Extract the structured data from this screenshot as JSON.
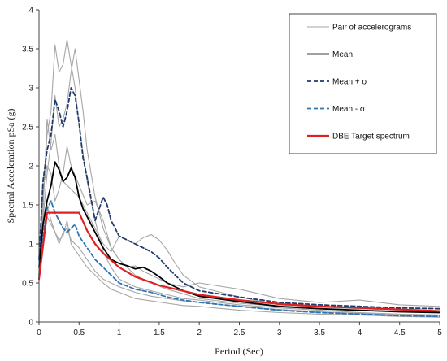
{
  "chart_data": {
    "type": "line",
    "title": "",
    "xlabel": "Period (Sec)",
    "ylabel": "Spectral Acceleration pSa (g)",
    "xlim": [
      0,
      5
    ],
    "ylim": [
      0,
      4
    ],
    "xticks": [
      "0",
      "0.5",
      "1",
      "1.5",
      "2",
      "2.5",
      "3",
      "3.5",
      "4",
      "4.5",
      "5"
    ],
    "yticks": [
      "0",
      "0.5",
      "1",
      "1.5",
      "2",
      "2.5",
      "3",
      "3.5",
      "4"
    ],
    "grid": false,
    "legend_position": "top-right",
    "legend": [
      {
        "label": "Pair of accelerograms",
        "color": "#a6a6a6",
        "style": "solid"
      },
      {
        "label": "Mean",
        "color": "#000000",
        "style": "solid"
      },
      {
        "label": "Mean + σ",
        "color": "#1f3a6b",
        "style": "dashed"
      },
      {
        "label": "Mean - σ",
        "color": "#2e75b6",
        "style": "dashed"
      },
      {
        "label": "DBE Target spectrum",
        "color": "#e02020",
        "style": "solid"
      }
    ],
    "series": [
      {
        "name": "DBE Target spectrum",
        "color": "#e02020",
        "width": 2.2,
        "dash": "",
        "x": [
          0,
          0.1,
          0.5,
          0.6,
          0.7,
          0.8,
          1.0,
          1.2,
          1.5,
          2.0,
          2.5,
          3.0,
          3.5,
          4.0,
          4.5,
          5.0
        ],
        "y": [
          0.55,
          1.4,
          1.4,
          1.17,
          1.0,
          0.88,
          0.7,
          0.58,
          0.47,
          0.35,
          0.28,
          0.23,
          0.2,
          0.18,
          0.16,
          0.14
        ]
      },
      {
        "name": "Mean",
        "color": "#000000",
        "width": 1.8,
        "dash": "",
        "x": [
          0,
          0.05,
          0.1,
          0.15,
          0.2,
          0.25,
          0.3,
          0.35,
          0.4,
          0.45,
          0.5,
          0.55,
          0.6,
          0.7,
          0.8,
          0.9,
          1.0,
          1.1,
          1.2,
          1.3,
          1.4,
          1.5,
          1.6,
          1.8,
          2.0,
          2.5,
          3.0,
          3.5,
          4.0,
          4.5,
          5.0
        ],
        "y": [
          0.7,
          1.25,
          1.55,
          1.75,
          2.05,
          1.95,
          1.8,
          1.85,
          1.97,
          1.85,
          1.6,
          1.45,
          1.35,
          1.15,
          0.95,
          0.8,
          0.75,
          0.72,
          0.68,
          0.7,
          0.65,
          0.58,
          0.5,
          0.4,
          0.33,
          0.26,
          0.2,
          0.17,
          0.15,
          0.13,
          0.12
        ]
      },
      {
        "name": "Mean + σ",
        "color": "#1f3a6b",
        "width": 1.8,
        "dash": "5,3",
        "x": [
          0,
          0.05,
          0.1,
          0.15,
          0.2,
          0.25,
          0.3,
          0.35,
          0.4,
          0.45,
          0.5,
          0.55,
          0.6,
          0.7,
          0.75,
          0.8,
          0.85,
          0.9,
          1.0,
          1.1,
          1.2,
          1.3,
          1.4,
          1.5,
          1.6,
          1.8,
          2.0,
          2.5,
          3.0,
          3.5,
          4.0,
          4.5,
          5.0
        ],
        "y": [
          0.8,
          1.8,
          2.2,
          2.4,
          2.85,
          2.7,
          2.5,
          2.7,
          3.0,
          2.9,
          2.55,
          2.1,
          1.85,
          1.3,
          1.45,
          1.6,
          1.5,
          1.3,
          1.1,
          1.05,
          1.0,
          0.95,
          0.9,
          0.82,
          0.7,
          0.5,
          0.4,
          0.32,
          0.25,
          0.22,
          0.2,
          0.18,
          0.17
        ]
      },
      {
        "name": "Mean - σ",
        "color": "#2e75b6",
        "width": 1.8,
        "dash": "5,3",
        "x": [
          0,
          0.05,
          0.1,
          0.15,
          0.2,
          0.25,
          0.3,
          0.35,
          0.4,
          0.45,
          0.5,
          0.6,
          0.7,
          0.8,
          0.9,
          1.0,
          1.2,
          1.4,
          1.6,
          1.8,
          2.0,
          2.5,
          3.0,
          3.5,
          4.0,
          4.5,
          5.0
        ],
        "y": [
          0.6,
          1.05,
          1.45,
          1.55,
          1.4,
          1.3,
          1.2,
          1.15,
          1.2,
          1.25,
          1.1,
          0.95,
          0.8,
          0.7,
          0.6,
          0.5,
          0.42,
          0.38,
          0.32,
          0.28,
          0.25,
          0.2,
          0.15,
          0.12,
          0.1,
          0.08,
          0.07
        ]
      },
      {
        "name": "Pair of accelerograms",
        "color": "#a6a6a6",
        "width": 1.1,
        "dash": "",
        "x": [
          0,
          0.05,
          0.1,
          0.15,
          0.2,
          0.25,
          0.3,
          0.35,
          0.4,
          0.45,
          0.5,
          0.6,
          0.7,
          0.8,
          0.9,
          1.0,
          1.2,
          1.4,
          1.6,
          1.8,
          2.0,
          2.5,
          3.0,
          3.5,
          4.0,
          4.5,
          5.0
        ],
        "y": [
          0.65,
          1.6,
          2.4,
          2.7,
          3.55,
          3.2,
          3.3,
          3.62,
          3.3,
          3.0,
          2.5,
          1.8,
          1.3,
          0.9,
          0.7,
          0.55,
          0.45,
          0.4,
          0.35,
          0.3,
          0.28,
          0.22,
          0.18,
          0.15,
          0.12,
          0.1,
          0.09
        ]
      },
      {
        "name": "Pair of accelerograms",
        "color": "#a6a6a6",
        "width": 1.1,
        "dash": "",
        "x": [
          0,
          0.05,
          0.1,
          0.15,
          0.2,
          0.25,
          0.3,
          0.35,
          0.4,
          0.45,
          0.5,
          0.55,
          0.6,
          0.7,
          0.8,
          0.9,
          1.0,
          1.2,
          1.4,
          1.6,
          1.8,
          2.0,
          2.5,
          3.0,
          3.5,
          4.0,
          4.5,
          5.0
        ],
        "y": [
          0.7,
          1.3,
          1.9,
          2.3,
          2.9,
          2.5,
          2.6,
          2.8,
          3.2,
          3.5,
          3.1,
          2.7,
          2.2,
          1.6,
          1.2,
          0.95,
          0.8,
          0.6,
          0.5,
          0.42,
          0.36,
          0.3,
          0.24,
          0.2,
          0.17,
          0.15,
          0.13,
          0.12
        ]
      },
      {
        "name": "Pair of accelerograms",
        "color": "#a6a6a6",
        "width": 1.1,
        "dash": "",
        "x": [
          0,
          0.05,
          0.1,
          0.15,
          0.2,
          0.25,
          0.3,
          0.4,
          0.5,
          0.6,
          0.7,
          0.8,
          0.9,
          1.0,
          1.1,
          1.2,
          1.3,
          1.4,
          1.5,
          1.6,
          1.7,
          1.8,
          2.0,
          2.5,
          3.0,
          3.5,
          4.0,
          4.5,
          5.0
        ],
        "y": [
          0.6,
          1.4,
          2.6,
          2.2,
          2.4,
          2.0,
          1.8,
          1.7,
          1.6,
          1.4,
          1.2,
          1.0,
          0.9,
          1.1,
          1.05,
          1.0,
          1.08,
          1.12,
          1.05,
          0.92,
          0.75,
          0.6,
          0.45,
          0.32,
          0.22,
          0.19,
          0.17,
          0.15,
          0.13
        ]
      },
      {
        "name": "Pair of accelerograms",
        "color": "#a6a6a6",
        "width": 1.1,
        "dash": "",
        "x": [
          0,
          0.05,
          0.1,
          0.15,
          0.2,
          0.25,
          0.3,
          0.35,
          0.4,
          0.5,
          0.6,
          0.7,
          0.8,
          0.9,
          1.0,
          1.1,
          1.2,
          1.3,
          1.4,
          1.6,
          1.8,
          2.0,
          2.5,
          3.0,
          3.5,
          4.0,
          4.5,
          5.0
        ],
        "y": [
          0.75,
          1.7,
          2.0,
          1.9,
          1.55,
          1.7,
          1.9,
          2.25,
          2.0,
          1.75,
          1.5,
          1.55,
          1.3,
          0.95,
          0.8,
          0.7,
          0.72,
          0.65,
          0.6,
          0.5,
          0.45,
          0.5,
          0.42,
          0.3,
          0.25,
          0.28,
          0.22,
          0.2
        ]
      },
      {
        "name": "Pair of accelerograms",
        "color": "#a6a6a6",
        "width": 1.1,
        "dash": "",
        "x": [
          0,
          0.05,
          0.1,
          0.15,
          0.2,
          0.25,
          0.3,
          0.35,
          0.4,
          0.5,
          0.6,
          0.7,
          0.8,
          0.9,
          1.0,
          1.2,
          1.4,
          1.6,
          1.8,
          2.0,
          2.5,
          3.0,
          3.5,
          4.0,
          4.5,
          5.0
        ],
        "y": [
          0.55,
          1.0,
          1.35,
          1.25,
          1.15,
          1.0,
          1.15,
          1.2,
          1.05,
          0.95,
          0.8,
          0.65,
          0.55,
          0.5,
          0.45,
          0.38,
          0.33,
          0.3,
          0.27,
          0.25,
          0.2,
          0.16,
          0.13,
          0.11,
          0.09,
          0.08
        ]
      },
      {
        "name": "Pair of accelerograms",
        "color": "#a6a6a6",
        "width": 1.1,
        "dash": "",
        "x": [
          0,
          0.05,
          0.1,
          0.15,
          0.2,
          0.25,
          0.3,
          0.35,
          0.4,
          0.5,
          0.6,
          0.7,
          0.8,
          0.9,
          1.0,
          1.2,
          1.4,
          1.6,
          1.8,
          2.0,
          2.5,
          3.0,
          3.5,
          4.0,
          4.5,
          5.0
        ],
        "y": [
          0.6,
          1.15,
          1.5,
          1.3,
          1.15,
          1.05,
          1.1,
          1.3,
          1.0,
          0.85,
          0.7,
          0.6,
          0.5,
          0.42,
          0.38,
          0.3,
          0.27,
          0.24,
          0.21,
          0.2,
          0.15,
          0.12,
          0.1,
          0.09,
          0.07,
          0.06
        ]
      }
    ]
  }
}
